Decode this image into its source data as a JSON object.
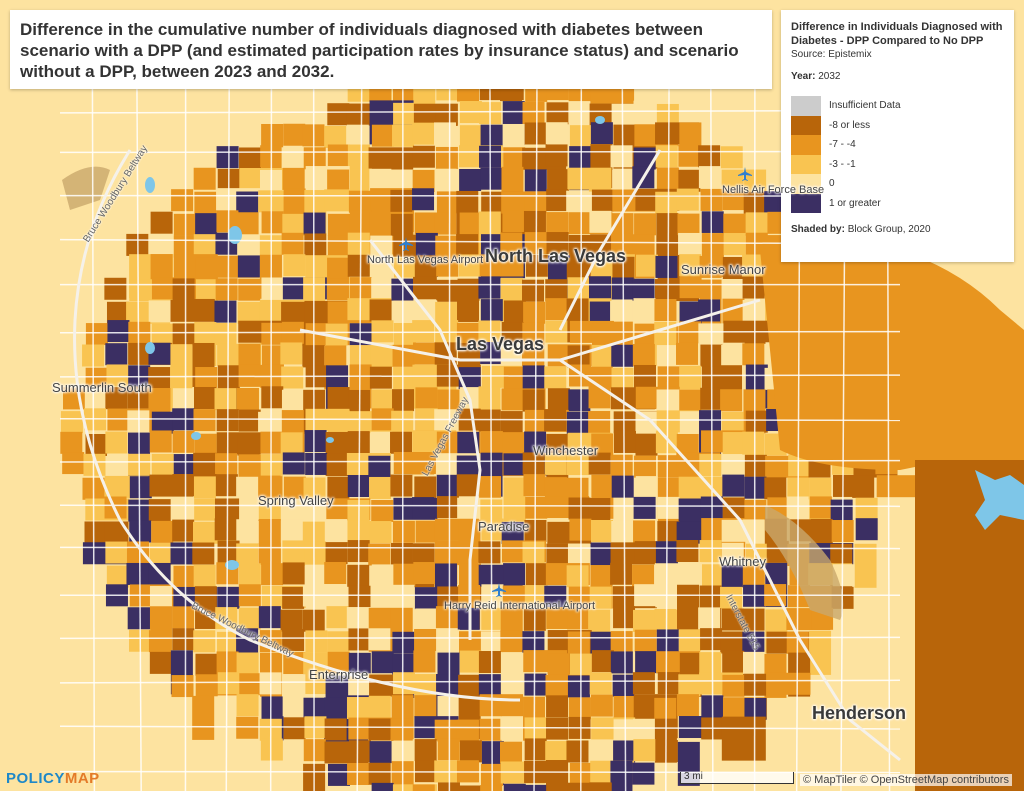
{
  "title": "Difference in the cumulative number of individuals diagnosed with diabetes between scenario with a DPP (and estimated participation rates by insurance status) and scenario without a DPP, between 2023 and 2032.",
  "legend": {
    "title": "Difference in Individuals Diagnosed with Diabetes - DPP Compared to No DPP",
    "source": "Source: Epistemix",
    "year_label": "Year:",
    "year": "2032",
    "items": [
      {
        "label": "Insufficient Data",
        "color": "#cccccc"
      },
      {
        "label": "-8 or less",
        "color": "#b8650a"
      },
      {
        "label": "-7 - -4",
        "color": "#e8951f"
      },
      {
        "label": "-3 - -1",
        "color": "#f9c451"
      },
      {
        "label": "0",
        "color": "#fde3a0"
      },
      {
        "label": "1 or greater",
        "color": "#3b2f63"
      }
    ],
    "shaded_label": "Shaded by:",
    "shaded": "Block Group, 2020"
  },
  "places": {
    "north_las_vegas": "North Las Vegas",
    "las_vegas": "Las Vegas",
    "henderson": "Henderson",
    "summerlin_south": "Summerlin South",
    "spring_valley": "Spring Valley",
    "paradise": "Paradise",
    "winchester": "Winchester",
    "whitney": "Whitney",
    "enterprise": "Enterprise",
    "sunrise_manor": "Sunrise Manor",
    "nellis_afb": "Nellis Air Force Base",
    "nlv_airport": "North Las Vegas Airport",
    "harry_reid": "Harry Reid International Airport"
  },
  "roads": {
    "bruce_woodbury_nw": "Bruce Woodbury Beltway",
    "bruce_woodbury_sw": "Bruce Woodbury Beltway",
    "interstate_515": "Interstate 515",
    "las_vegas_fwy": "Las Vegas Freeway"
  },
  "scale": "3 mi",
  "attribution": "© MapTiler © OpenStreetMap contributors",
  "logo": {
    "part1": "POLICY",
    "part2": "MAP"
  },
  "colors": {
    "c_dark": "#b8650a",
    "c_mid": "#e8951f",
    "c_light": "#f9c451",
    "c_zero": "#fde3a0",
    "c_pos": "#3b2f63",
    "water": "#7ec6e8",
    "terrain": "#c9a76b"
  }
}
